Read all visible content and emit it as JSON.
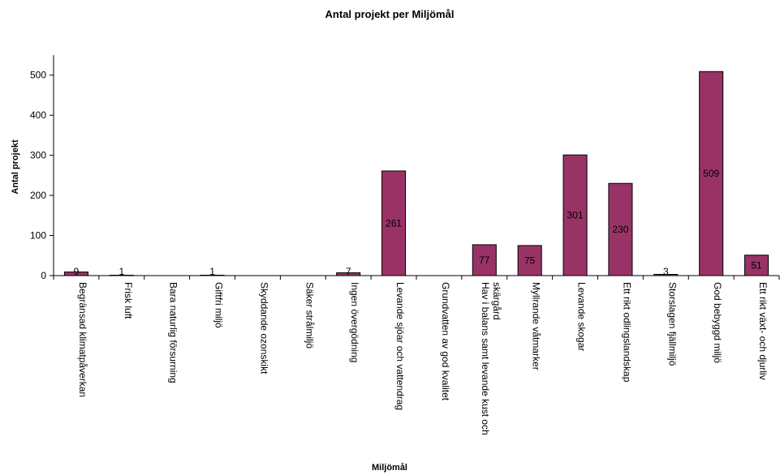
{
  "chart_data": {
    "type": "bar",
    "title": "Antal projekt per Miljömål",
    "xlabel": "Miljömål",
    "ylabel": "Antal projekt",
    "ylim": [
      0,
      550
    ],
    "yticks": [
      0,
      100,
      200,
      300,
      400,
      500
    ],
    "grid": false,
    "legend": "none",
    "bar_color": "#993366",
    "categories": [
      [
        "Begränsad klimatpåverkan"
      ],
      [
        "Frisk luft"
      ],
      [
        "Bara naturlig försurning"
      ],
      [
        "Giftfri miljö"
      ],
      [
        "Skyddande ozonskikt"
      ],
      [
        "Säker strålmiljö"
      ],
      [
        "Ingen övergödning"
      ],
      [
        "Levande sjöar och vattendrag"
      ],
      [
        "Grundvatten av god kvalitet"
      ],
      [
        "Hav i balans samt levande kust och",
        "skärgård"
      ],
      [
        "Myllrande våtmarker"
      ],
      [
        "Levande skogar"
      ],
      [
        "Ett rikt odlingslandskap"
      ],
      [
        "Storslagen fjällmiljö"
      ],
      [
        "God bebyggd miljö"
      ],
      [
        "Ett rikt växt- och djurliv"
      ]
    ],
    "values": [
      9,
      1,
      0,
      1,
      0,
      0,
      7,
      261,
      0,
      77,
      75,
      301,
      230,
      3,
      509,
      51
    ],
    "data_labels": [
      "9",
      "1",
      "",
      "1",
      "",
      "",
      "7",
      "261",
      "",
      "77",
      "75",
      "301",
      "230",
      "3",
      "509",
      "51"
    ]
  }
}
